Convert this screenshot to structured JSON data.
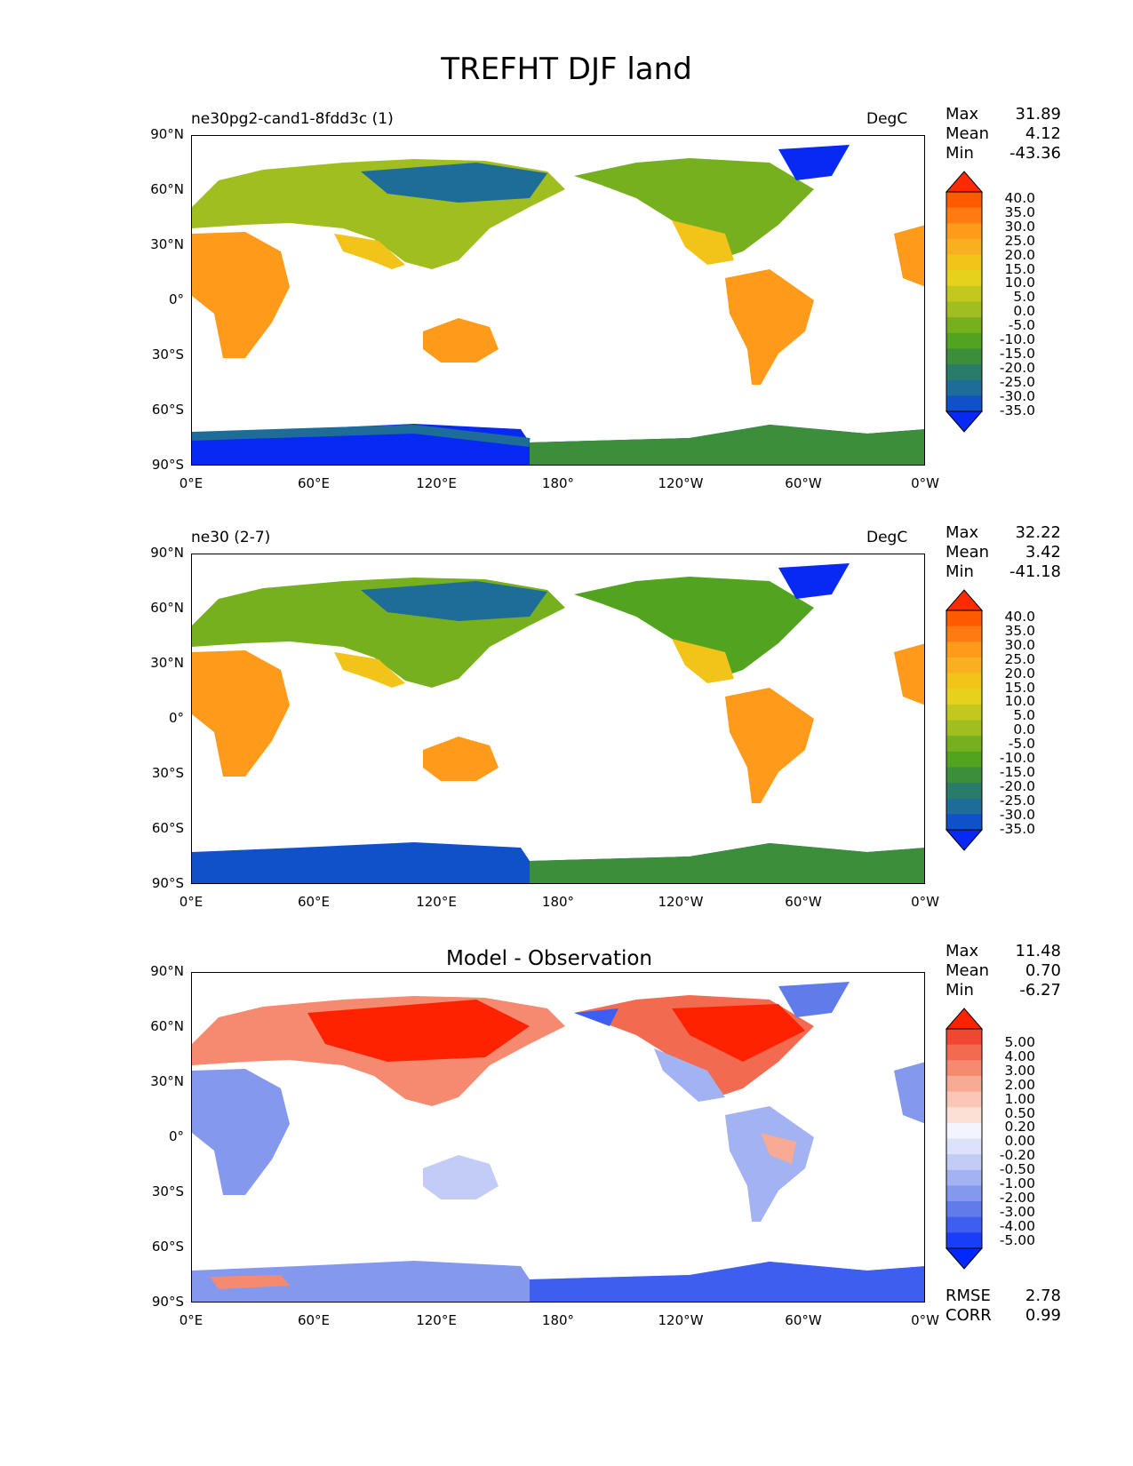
{
  "title": "TREFHT DJF land",
  "lat_ticks": [
    "90°N",
    "60°N",
    "30°N",
    "0°",
    "30°S",
    "60°S",
    "90°S"
  ],
  "lon_ticks": [
    "0°E",
    "60°E",
    "120°E",
    "180°",
    "120°W",
    "60°W",
    "0°W"
  ],
  "panels": [
    {
      "left_label": "ne30pg2-cand1-8fdd3c (1)",
      "right_label": "DegC",
      "stats": {
        "max_label": "Max",
        "max": "31.89",
        "mean_label": "Mean",
        "mean": "4.12",
        "min_label": "Min",
        "min": "-43.36"
      },
      "colorbar_levels": [
        "40.0",
        "35.0",
        "30.0",
        "25.0",
        "20.0",
        "15.0",
        "10.0",
        "5.0",
        "0.0",
        "-5.0",
        "-10.0",
        "-15.0",
        "-20.0",
        "-25.0",
        "-30.0",
        "-35.0"
      ],
      "colors": [
        "#ff2a00",
        "#ff5a00",
        "#ff7a10",
        "#ff9a1a",
        "#f8b020",
        "#f2c41a",
        "#e6d21c",
        "#c2c81e",
        "#a0be20",
        "#76b01e",
        "#52a420",
        "#3c8e3a",
        "#2a7c6a",
        "#1e6c98",
        "#1050c8",
        "#0828f4"
      ]
    },
    {
      "left_label": "ne30 (2-7)",
      "right_label": "DegC",
      "stats": {
        "max_label": "Max",
        "max": "32.22",
        "mean_label": "Mean",
        "mean": "3.42",
        "min_label": "Min",
        "min": "-41.18"
      },
      "colorbar_levels": [
        "40.0",
        "35.0",
        "30.0",
        "25.0",
        "20.0",
        "15.0",
        "10.0",
        "5.0",
        "0.0",
        "-5.0",
        "-10.0",
        "-15.0",
        "-20.0",
        "-25.0",
        "-30.0",
        "-35.0"
      ],
      "colors": [
        "#ff2a00",
        "#ff5a00",
        "#ff7a10",
        "#ff9a1a",
        "#f8b020",
        "#f2c41a",
        "#e6d21c",
        "#c2c81e",
        "#a0be20",
        "#76b01e",
        "#52a420",
        "#3c8e3a",
        "#2a7c6a",
        "#1e6c98",
        "#1050c8",
        "#0828f4"
      ]
    },
    {
      "title": "Model - Observation",
      "stats": {
        "max_label": "Max",
        "max": "11.48",
        "mean_label": "Mean",
        "mean": "0.70",
        "min_label": "Min",
        "min": "-6.27"
      },
      "colorbar_levels": [
        "5.00",
        "4.00",
        "3.00",
        "2.00",
        "1.00",
        "0.50",
        "0.20",
        "0.00",
        "-0.20",
        "-0.50",
        "-1.00",
        "-2.00",
        "-3.00",
        "-4.00",
        "-5.00"
      ],
      "colors": [
        "#ff2200",
        "#f04830",
        "#f26a50",
        "#f58a70",
        "#f8aa94",
        "#fac6b6",
        "#fce0d6",
        "#f4f4ff",
        "#dce2fa",
        "#c2ccf6",
        "#a2b2f2",
        "#8498ee",
        "#607cea",
        "#3e5ef0",
        "#1a3ef8",
        "#0028ff"
      ],
      "footer": {
        "rmse_label": "RMSE",
        "rmse": "2.78",
        "corr_label": "CORR",
        "corr": "0.99"
      }
    }
  ]
}
